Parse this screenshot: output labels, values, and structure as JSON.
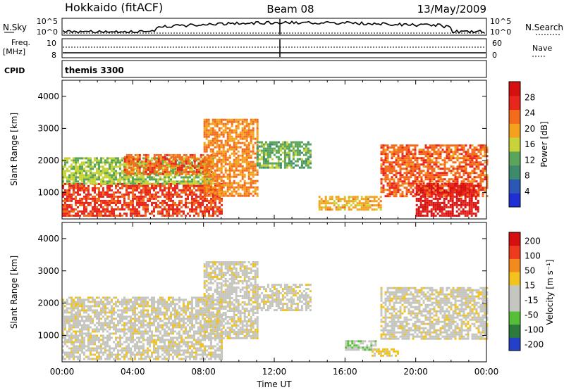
{
  "header": {
    "title_left": "Hokkaido (fitACF)",
    "title_center": "Beam 08",
    "title_right": "13/May/2009"
  },
  "aux": {
    "nsky_label": "N.Sky",
    "nsky_ticks": [
      "10^5",
      "10^0"
    ],
    "nsearch_label": "N.Search",
    "freq_label_1": "Freq.",
    "freq_label_2": "[MHz]",
    "freq_ticks": [
      "10",
      "8"
    ],
    "nave_ticks": [
      "60",
      "0"
    ],
    "nave_label": "Nave",
    "cpid_label": "CPID",
    "cpid_value": "themis 3300"
  },
  "colors": {
    "power_scale": [
      "#1f2fd6",
      "#2b57b5",
      "#3d8a6c",
      "#5aa55a",
      "#c8d33a",
      "#f4a21d",
      "#f36b1b",
      "#e8261d",
      "#d61010"
    ],
    "velocity_scale": [
      "#2340c9",
      "#2c7a3c",
      "#55c037",
      "#c6c6c0",
      "#c6c6c0",
      "#f2c21d",
      "#f28a1d",
      "#ee3a1d",
      "#d61010"
    ]
  },
  "chart_data": [
    {
      "type": "heatmap",
      "panel": "power",
      "xlabel": "",
      "ylabel": "Slant Range [km]",
      "xlim": [
        0,
        24
      ],
      "ylim": [
        180,
        4500
      ],
      "yticks": [
        "1000",
        "2000",
        "3000",
        "4000"
      ],
      "colorbar_label": "Power [dB]",
      "colorbar_ticks": [
        "4",
        "8",
        "12",
        "16",
        "20",
        "24",
        "28"
      ],
      "colorbar_range": [
        0,
        30
      ],
      "regions": [
        {
          "t": [
            0.0,
            9.0
          ],
          "r": [
            300,
            1300
          ],
          "v": 24
        },
        {
          "t": [
            0.0,
            8.5
          ],
          "r": [
            1300,
            2100
          ],
          "v": 14
        },
        {
          "t": [
            3.5,
            8.5
          ],
          "r": [
            1600,
            2200
          ],
          "v": 22
        },
        {
          "t": [
            8.0,
            11.0
          ],
          "r": [
            900,
            3300
          ],
          "v": 20
        },
        {
          "t": [
            11.0,
            14.0
          ],
          "r": [
            1800,
            2600
          ],
          "v": 12
        },
        {
          "t": [
            14.5,
            18.0
          ],
          "r": [
            500,
            900
          ],
          "v": 18
        },
        {
          "t": [
            18.0,
            24.0
          ],
          "r": [
            900,
            2500
          ],
          "v": 22
        },
        {
          "t": [
            20.0,
            23.5
          ],
          "r": [
            300,
            1300
          ],
          "v": 27
        }
      ]
    },
    {
      "type": "heatmap",
      "panel": "velocity",
      "xlabel": "Time UT",
      "ylabel": "Slant Range [km]",
      "xlim": [
        0,
        24
      ],
      "ylim": [
        180,
        4500
      ],
      "xticks": [
        "00:00",
        "04:00",
        "08:00",
        "12:00",
        "16:00",
        "20:00",
        "00:00"
      ],
      "yticks": [
        "1000",
        "2000",
        "3000",
        "4000"
      ],
      "colorbar_label": "Velocity [m s⁻¹]",
      "colorbar_ticks": [
        "200",
        "100",
        "50",
        "15",
        "-15",
        "-50",
        "-100",
        "-200"
      ],
      "colorbar_range": [
        -250,
        250
      ],
      "regions": [
        {
          "t": [
            0.0,
            9.0
          ],
          "r": [
            300,
            2200
          ],
          "v": 0
        },
        {
          "t": [
            8.0,
            11.0
          ],
          "r": [
            900,
            3300
          ],
          "v": 0
        },
        {
          "t": [
            11.0,
            14.0
          ],
          "r": [
            1800,
            2600
          ],
          "v": 0
        },
        {
          "t": [
            16.0,
            17.7
          ],
          "r": [
            550,
            850
          ],
          "v": -60
        },
        {
          "t": [
            17.5,
            19.0
          ],
          "r": [
            350,
            600
          ],
          "v": 40
        },
        {
          "t": [
            18.0,
            24.0
          ],
          "r": [
            900,
            2500
          ],
          "v": 0
        }
      ]
    }
  ]
}
